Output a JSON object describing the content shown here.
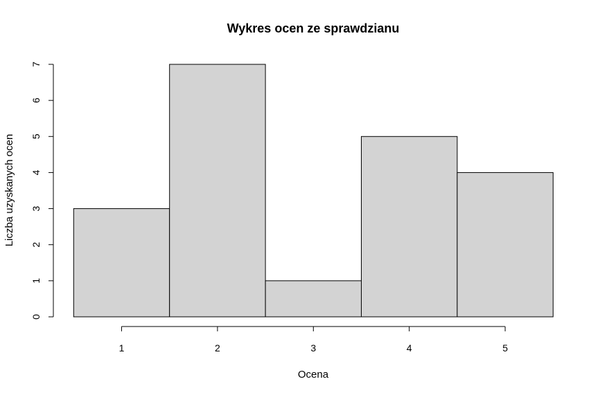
{
  "chart_data": {
    "type": "bar",
    "title": "Wykres ocen ze sprawdzianu",
    "xlabel": "Ocena",
    "ylabel": "Liczba uzyskanych ocen",
    "categories": [
      "1",
      "2",
      "3",
      "4",
      "5"
    ],
    "values": [
      3,
      7,
      1,
      5,
      4
    ],
    "ylim": [
      0,
      7
    ],
    "yticks": [
      0,
      1,
      2,
      3,
      4,
      5,
      6,
      7
    ],
    "xticks": [
      1,
      2,
      3,
      4,
      5
    ],
    "bar_color": "#d3d3d3",
    "edge_color": "#000000",
    "grid": false,
    "legend": "none"
  }
}
